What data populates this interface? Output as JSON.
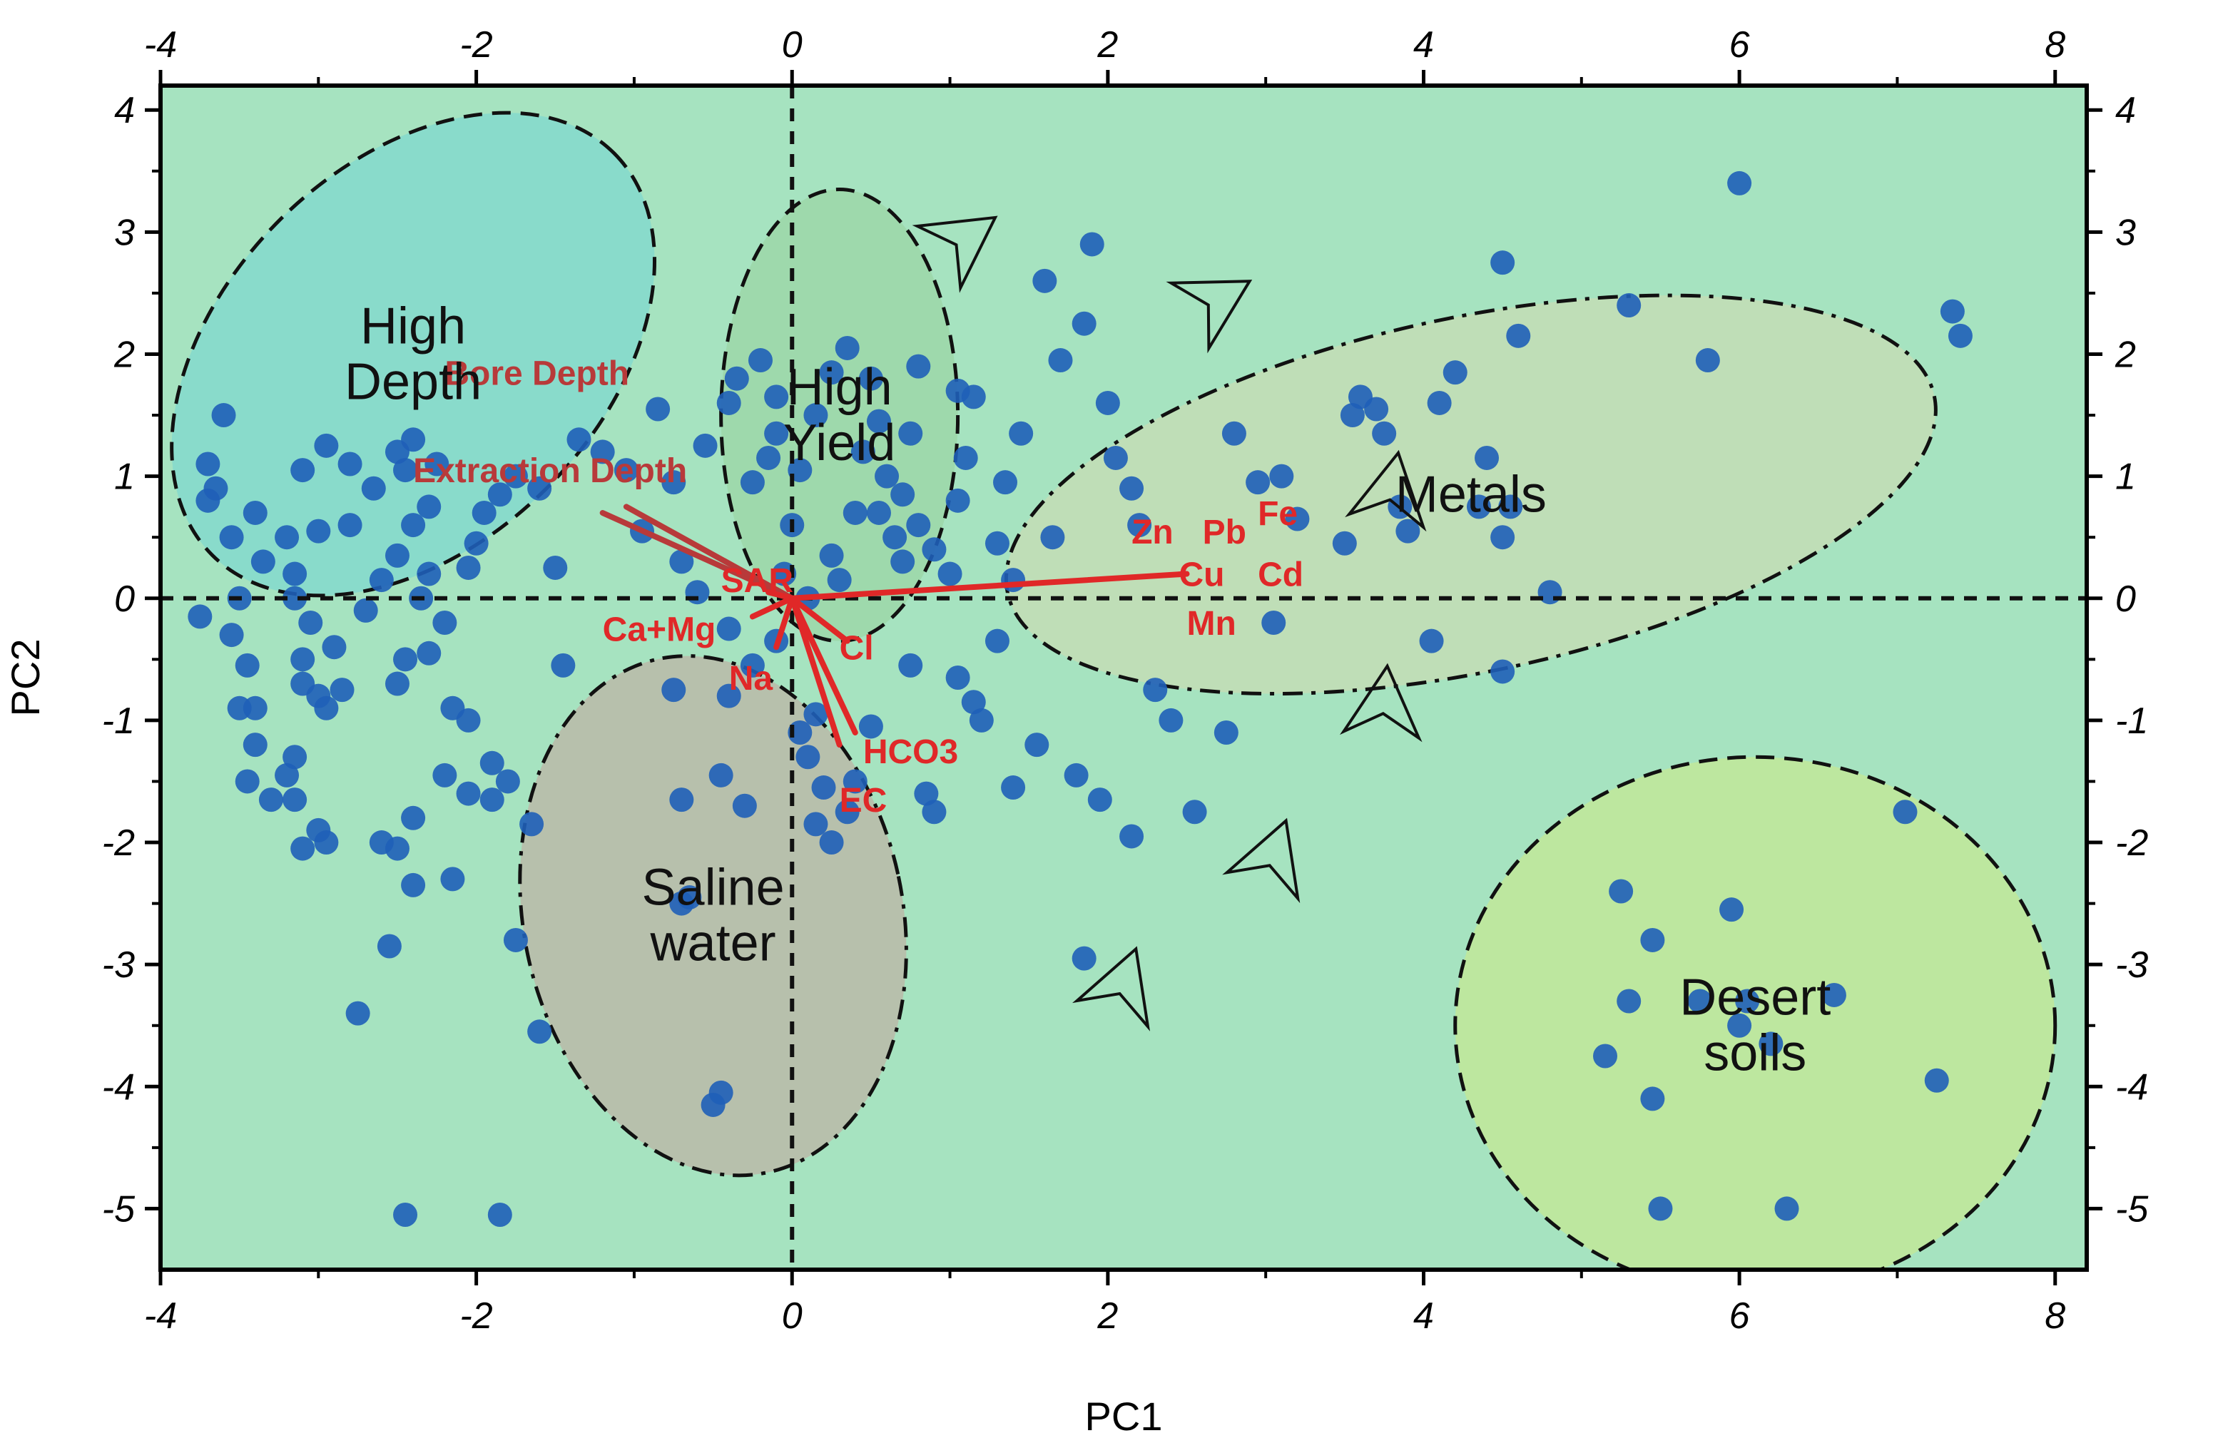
{
  "chart_data": {
    "type": "scatter",
    "xlabel": "PC1",
    "ylabel": "PC2",
    "xlim": [
      -4,
      8.2
    ],
    "ylim": [
      -5.5,
      4.2
    ],
    "xticks": [
      -4,
      -2,
      0,
      2,
      4,
      6,
      8
    ],
    "yticks": [
      -5,
      -4,
      -3,
      -2,
      -1,
      0,
      1,
      2,
      3,
      4
    ],
    "xtick_labels": [
      "-4",
      "-2",
      "0",
      "2",
      "4",
      "6",
      "8"
    ],
    "ytick_labels": [
      "-5",
      "-4",
      "-3",
      "-2",
      "-1",
      "0",
      "1",
      "2",
      "3",
      "4"
    ],
    "mirrored_axes": "top and right",
    "reference_lines": "dashed lines at x=0 and y=0",
    "colors": {
      "background": "#a6e3c0",
      "points": "#1f5fb8",
      "loadings": "#e02828",
      "high_depth_region": "#7fd8cf",
      "high_yield_region": "#9bd6a6",
      "metals_region": "#c7dcb4",
      "saline_region": "#bcb4a6",
      "desert_region": "#c4e894"
    },
    "regions": [
      {
        "name": "High Depth",
        "label_lines": [
          "High",
          "Depth"
        ],
        "cx": -2.4,
        "cy": 2.0,
        "rx": 1.8,
        "ry": 1.55,
        "rotation_deg": 45,
        "style": "dashed"
      },
      {
        "name": "High Yield",
        "label_lines": [
          "High",
          "Yield"
        ],
        "cx": 0.3,
        "cy": 1.5,
        "rx": 0.75,
        "ry": 1.85,
        "rotation_deg": 0,
        "style": "dashed"
      },
      {
        "name": "Metals",
        "label_lines": [
          "Metals"
        ],
        "cx": 4.3,
        "cy": 0.85,
        "rx": 3.0,
        "ry": 1.45,
        "rotation_deg": 12,
        "style": "dashdot"
      },
      {
        "name": "Saline water",
        "label_lines": [
          "Saline",
          "water"
        ],
        "cx": -0.5,
        "cy": -2.6,
        "rx": 1.2,
        "ry": 2.15,
        "rotation_deg": 12,
        "style": "dashdot"
      },
      {
        "name": "Desert soils",
        "label_lines": [
          "Desert",
          "soils"
        ],
        "cx": 6.1,
        "cy": -3.5,
        "rx": 1.9,
        "ry": 2.2,
        "rotation_deg": 0,
        "style": "dashed"
      }
    ],
    "loadings": [
      {
        "name": "Bore Depth",
        "x": -1.2,
        "y": 0.7,
        "label_x": -2.2,
        "label_y": 1.75,
        "color": "#b83a3a"
      },
      {
        "name": "Extraction Depth",
        "x": -1.05,
        "y": 0.75,
        "label_x": -2.4,
        "label_y": 0.95,
        "color": "#b83a3a"
      },
      {
        "name": "SAR",
        "x": -0.15,
        "y": 0.05,
        "label_x": -0.45,
        "label_y": 0.05,
        "color": "#e02828"
      },
      {
        "name": "Ca+Mg",
        "x": -0.25,
        "y": -0.15,
        "label_x": -1.2,
        "label_y": -0.35,
        "color": "#e02828"
      },
      {
        "name": "Na",
        "x": -0.1,
        "y": -0.4,
        "label_x": -0.4,
        "label_y": -0.75,
        "color": "#e02828"
      },
      {
        "name": "Cl",
        "x": 0.35,
        "y": -0.35,
        "label_x": 0.3,
        "label_y": -0.5,
        "color": "#e02828"
      },
      {
        "name": "HCO3",
        "x": 0.4,
        "y": -1.1,
        "label_x": 0.45,
        "label_y": -1.35,
        "color": "#e02828"
      },
      {
        "name": "EC",
        "x": 0.3,
        "y": -1.2,
        "label_x": 0.3,
        "label_y": -1.75,
        "color": "#e02828"
      },
      {
        "name": "Zn",
        "x": 2.5,
        "y": 0.2,
        "label_x": 2.15,
        "label_y": 0.45,
        "color": "#e02828"
      },
      {
        "name": "Pb",
        "x": 2.5,
        "y": 0.2,
        "label_x": 2.6,
        "label_y": 0.45,
        "color": "#e02828"
      },
      {
        "name": "Fe",
        "x": 2.5,
        "y": 0.2,
        "label_x": 2.95,
        "label_y": 0.6,
        "color": "#e02828"
      },
      {
        "name": "Cu",
        "x": 2.5,
        "y": 0.2,
        "label_x": 2.45,
        "label_y": 0.1,
        "color": "#e02828"
      },
      {
        "name": "Cd",
        "x": 2.5,
        "y": 0.2,
        "label_x": 2.95,
        "label_y": 0.1,
        "color": "#e02828"
      },
      {
        "name": "Mn",
        "x": 2.5,
        "y": 0.2,
        "label_x": 2.5,
        "label_y": -0.3,
        "color": "#e02828"
      }
    ],
    "arrows": [
      {
        "x": 1.1,
        "y": 2.95,
        "angle_deg": -35
      },
      {
        "x": 2.7,
        "y": 2.45,
        "angle_deg": -30
      },
      {
        "x": 3.8,
        "y": 0.9,
        "angle_deg": -80
      },
      {
        "x": 3.75,
        "y": -0.85,
        "angle_deg": -85
      },
      {
        "x": 3.05,
        "y": -2.1,
        "angle_deg": -70
      },
      {
        "x": 2.1,
        "y": -3.15,
        "angle_deg": -70
      }
    ],
    "points": [
      [
        -3.6,
        1.5
      ],
      [
        -3.7,
        1.1
      ],
      [
        -3.65,
        0.9
      ],
      [
        -3.7,
        0.8
      ],
      [
        -3.4,
        0.7
      ],
      [
        -3.55,
        0.5
      ],
      [
        -3.35,
        0.3
      ],
      [
        -3.5,
        0.0
      ],
      [
        -3.75,
        -0.15
      ],
      [
        -3.55,
        -0.3
      ],
      [
        -3.45,
        -0.55
      ],
      [
        -3.4,
        -0.9
      ],
      [
        -3.5,
        -0.9
      ],
      [
        -3.4,
        -1.2
      ],
      [
        -3.45,
        -1.5
      ],
      [
        -3.3,
        -1.65
      ],
      [
        -3.2,
        -1.45
      ],
      [
        -3.15,
        -1.3
      ],
      [
        -3.15,
        -1.65
      ],
      [
        -3.1,
        -2.05
      ],
      [
        -3.0,
        -1.9
      ],
      [
        -2.95,
        -2.0
      ],
      [
        -3.15,
        0.0
      ],
      [
        -3.05,
        -0.2
      ],
      [
        -3.1,
        -0.5
      ],
      [
        -3.1,
        -0.7
      ],
      [
        -3.0,
        -0.8
      ],
      [
        -2.95,
        -0.9
      ],
      [
        -2.85,
        -0.75
      ],
      [
        -2.9,
        -0.4
      ],
      [
        -3.2,
        0.5
      ],
      [
        -3.15,
        0.2
      ],
      [
        -3.0,
        0.55
      ],
      [
        -3.1,
        1.05
      ],
      [
        -2.95,
        1.25
      ],
      [
        -2.8,
        1.1
      ],
      [
        -2.65,
        0.9
      ],
      [
        -2.5,
        1.2
      ],
      [
        -2.4,
        1.3
      ],
      [
        -2.45,
        1.05
      ],
      [
        -2.25,
        1.1
      ],
      [
        -2.3,
        0.75
      ],
      [
        -2.4,
        0.6
      ],
      [
        -2.5,
        0.35
      ],
      [
        -2.3,
        0.2
      ],
      [
        -2.35,
        0.0
      ],
      [
        -2.2,
        -0.2
      ],
      [
        -2.45,
        -0.5
      ],
      [
        -2.5,
        -0.7
      ],
      [
        -2.3,
        -0.45
      ],
      [
        -2.15,
        -0.9
      ],
      [
        -2.05,
        -1.0
      ],
      [
        -2.2,
        -1.45
      ],
      [
        -2.05,
        -1.6
      ],
      [
        -2.4,
        -1.8
      ],
      [
        -2.6,
        -2.0
      ],
      [
        -2.5,
        -2.05
      ],
      [
        -2.4,
        -2.35
      ],
      [
        -2.55,
        -2.85
      ],
      [
        -2.75,
        -3.4
      ],
      [
        -2.15,
        -2.3
      ],
      [
        -1.9,
        -1.35
      ],
      [
        -1.9,
        -1.65
      ],
      [
        -1.8,
        -1.5
      ],
      [
        -1.65,
        -1.85
      ],
      [
        -1.75,
        -2.8
      ],
      [
        -1.6,
        -3.55
      ],
      [
        -2.45,
        -5.05
      ],
      [
        -1.85,
        -5.05
      ],
      [
        -2.8,
        0.6
      ],
      [
        -2.6,
        0.15
      ],
      [
        -2.7,
        -0.1
      ],
      [
        -2.05,
        0.25
      ],
      [
        -2.0,
        0.45
      ],
      [
        -1.95,
        0.7
      ],
      [
        -1.85,
        0.85
      ],
      [
        -1.75,
        1.0
      ],
      [
        -1.6,
        0.9
      ],
      [
        -1.5,
        0.25
      ],
      [
        -1.45,
        -0.55
      ],
      [
        -1.35,
        1.3
      ],
      [
        -1.2,
        1.2
      ],
      [
        -1.05,
        1.05
      ],
      [
        -0.95,
        0.55
      ],
      [
        -0.85,
        1.55
      ],
      [
        -0.75,
        0.95
      ],
      [
        -0.7,
        0.3
      ],
      [
        -0.6,
        0.05
      ],
      [
        -0.55,
        1.25
      ],
      [
        -0.4,
        1.6
      ],
      [
        -0.35,
        1.8
      ],
      [
        -0.2,
        1.95
      ],
      [
        -0.1,
        1.65
      ],
      [
        -0.1,
        1.35
      ],
      [
        0.05,
        1.05
      ],
      [
        0.15,
        1.5
      ],
      [
        0.25,
        1.85
      ],
      [
        0.35,
        2.05
      ],
      [
        0.5,
        1.8
      ],
      [
        0.55,
        1.45
      ],
      [
        0.45,
        1.2
      ],
      [
        0.6,
        1.0
      ],
      [
        0.7,
        0.85
      ],
      [
        0.75,
        1.35
      ],
      [
        0.8,
        1.9
      ],
      [
        0.55,
        0.7
      ],
      [
        0.65,
        0.5
      ],
      [
        0.7,
        0.3
      ],
      [
        0.8,
        0.6
      ],
      [
        0.9,
        0.4
      ],
      [
        1.0,
        0.2
      ],
      [
        1.05,
        0.8
      ],
      [
        1.1,
        1.15
      ],
      [
        1.15,
        1.65
      ],
      [
        1.05,
        1.7
      ],
      [
        1.3,
        0.45
      ],
      [
        1.4,
        0.15
      ],
      [
        1.3,
        -0.35
      ],
      [
        1.35,
        0.95
      ],
      [
        1.45,
        1.35
      ],
      [
        1.6,
        2.6
      ],
      [
        1.7,
        1.95
      ],
      [
        1.9,
        2.9
      ],
      [
        1.85,
        2.25
      ],
      [
        2.0,
        1.6
      ],
      [
        2.05,
        1.15
      ],
      [
        2.15,
        0.9
      ],
      [
        2.2,
        0.6
      ],
      [
        1.65,
        0.5
      ],
      [
        1.55,
        -1.2
      ],
      [
        1.4,
        -1.55
      ],
      [
        1.8,
        -1.45
      ],
      [
        1.95,
        -1.65
      ],
      [
        2.15,
        -1.95
      ],
      [
        2.3,
        -0.75
      ],
      [
        2.4,
        -1.0
      ],
      [
        2.55,
        -1.75
      ],
      [
        2.75,
        -1.1
      ],
      [
        2.8,
        1.35
      ],
      [
        2.95,
        0.95
      ],
      [
        3.1,
        1.0
      ],
      [
        3.2,
        0.65
      ],
      [
        3.05,
        -0.2
      ],
      [
        3.5,
        0.45
      ],
      [
        3.55,
        1.5
      ],
      [
        3.7,
        1.55
      ],
      [
        3.75,
        1.35
      ],
      [
        3.6,
        1.65
      ],
      [
        3.85,
        0.75
      ],
      [
        3.9,
        0.55
      ],
      [
        4.05,
        -0.35
      ],
      [
        4.2,
        1.85
      ],
      [
        4.1,
        1.6
      ],
      [
        4.4,
        1.15
      ],
      [
        4.35,
        0.75
      ],
      [
        4.5,
        0.5
      ],
      [
        4.55,
        0.75
      ],
      [
        4.5,
        -0.6
      ],
      [
        4.5,
        2.75
      ],
      [
        4.6,
        2.15
      ],
      [
        4.8,
        0.05
      ],
      [
        5.3,
        2.4
      ],
      [
        5.8,
        1.95
      ],
      [
        6.0,
        3.4
      ],
      [
        7.35,
        2.35
      ],
      [
        7.4,
        2.15
      ],
      [
        1.85,
        -2.95
      ],
      [
        0.05,
        -1.1
      ],
      [
        0.15,
        -0.95
      ],
      [
        0.1,
        -1.3
      ],
      [
        0.2,
        -1.55
      ],
      [
        0.15,
        -1.85
      ],
      [
        0.25,
        -2.0
      ],
      [
        0.35,
        -1.75
      ],
      [
        0.4,
        -1.5
      ],
      [
        0.5,
        -1.05
      ],
      [
        0.85,
        -1.6
      ],
      [
        0.9,
        -1.75
      ],
      [
        0.75,
        -0.55
      ],
      [
        1.05,
        -0.65
      ],
      [
        1.15,
        -0.85
      ],
      [
        1.2,
        -1.0
      ],
      [
        -0.1,
        -0.35
      ],
      [
        -0.25,
        -0.55
      ],
      [
        -0.4,
        -0.8
      ],
      [
        -0.45,
        -1.45
      ],
      [
        -0.3,
        -1.7
      ],
      [
        -0.75,
        -0.75
      ],
      [
        -0.7,
        -1.65
      ],
      [
        -0.65,
        -2.45
      ],
      [
        -0.7,
        -2.5
      ],
      [
        -0.45,
        -4.05
      ],
      [
        -0.5,
        -4.15
      ],
      [
        -0.4,
        -0.25
      ],
      [
        -0.15,
        1.15
      ],
      [
        -0.25,
        0.95
      ],
      [
        0.0,
        0.6
      ],
      [
        0.25,
        0.35
      ],
      [
        0.4,
        0.7
      ],
      [
        0.1,
        0.0
      ],
      [
        0.3,
        0.15
      ],
      [
        -0.05,
        0.2
      ],
      [
        5.25,
        -2.4
      ],
      [
        5.45,
        -2.8
      ],
      [
        5.3,
        -3.3
      ],
      [
        5.15,
        -3.75
      ],
      [
        5.45,
        -4.1
      ],
      [
        5.5,
        -5.0
      ],
      [
        5.75,
        -3.3
      ],
      [
        5.95,
        -2.55
      ],
      [
        6.0,
        -3.5
      ],
      [
        6.05,
        -3.3
      ],
      [
        6.2,
        -3.65
      ],
      [
        6.3,
        -5.0
      ],
      [
        6.6,
        -3.25
      ],
      [
        7.05,
        -1.75
      ],
      [
        7.25,
        -3.95
      ]
    ]
  }
}
